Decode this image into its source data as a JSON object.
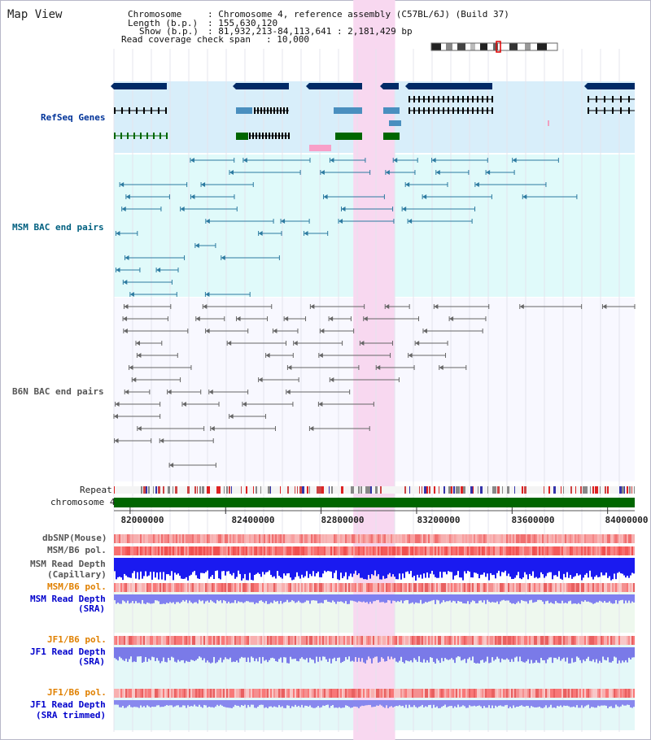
{
  "title": "Map View",
  "header": {
    "chromosome_label": "Chromosome",
    "chromosome_value": ": Chromosome 4, reference assembly (C57BL/6J) (Build 37)",
    "length_label": "Length (b.p.)",
    "length_value": ": 155,630,120",
    "show_label": "Show (b.p.)",
    "show_value": ": 81,932,213-84,113,641 : 2,181,429 bp",
    "coverage_label": "Read coverage check span",
    "coverage_value": ": 10,000"
  },
  "view": {
    "start": 81932213,
    "end": 84113641,
    "highlight_start": 82935000,
    "highlight_end": 83110000
  },
  "tracks": {
    "refseq": "RefSeq Genes",
    "msm_bac": "MSM BAC end pairs",
    "b6n_bac": "B6N BAC end pairs",
    "repeat": "Repeat",
    "chromosome": "chromosome 4",
    "dbsnp": "dbSNP(Mouse)",
    "msm_b6_pol": "MSM/B6 pol.",
    "msm_read_depth_capillary_1": "MSM Read Depth",
    "msm_read_depth_capillary_2": "(Capillary)",
    "msm_b6_pol_sra": "MSM/B6 pol.",
    "msm_read_depth_sra_1": "MSM Read Depth",
    "msm_read_depth_sra_2": "(SRA)",
    "jf1_b6_pol": "JF1/B6 pol.",
    "jf1_read_depth_sra_1": "JF1 Read Depth",
    "jf1_read_depth_sra_2": "(SRA)",
    "jf1_b6_pol_trimmed": "JF1/B6 pol.",
    "jf1_read_depth_trim_1": "JF1 Read Depth",
    "jf1_read_depth_trim_2": "(SRA trimmed)"
  },
  "axis_ticks": [
    {
      "label": "82000000",
      "value": 82000000
    },
    {
      "label": "82400000",
      "value": 82400000
    },
    {
      "label": "82800000",
      "value": 82800000
    },
    {
      "label": "83200000",
      "value": 83200000
    },
    {
      "label": "83600000",
      "value": 83600000
    },
    {
      "label": "84000000",
      "value": 84000000
    }
  ],
  "colors": {
    "refseq_label": "#003399",
    "msm_label": "#006080",
    "b6n_label": "#555555",
    "orange_label": "#e08000",
    "blue_label": "#0000cc",
    "refseq_bg": "#d8eefa",
    "msm_bg": "#e0fafa",
    "highlight": "#f8d8f0",
    "gene_dark": "#002a66",
    "gene_mid": "#4a8fbf",
    "gene_green": "#006600",
    "chromosome_bar": "#006600"
  }
}
